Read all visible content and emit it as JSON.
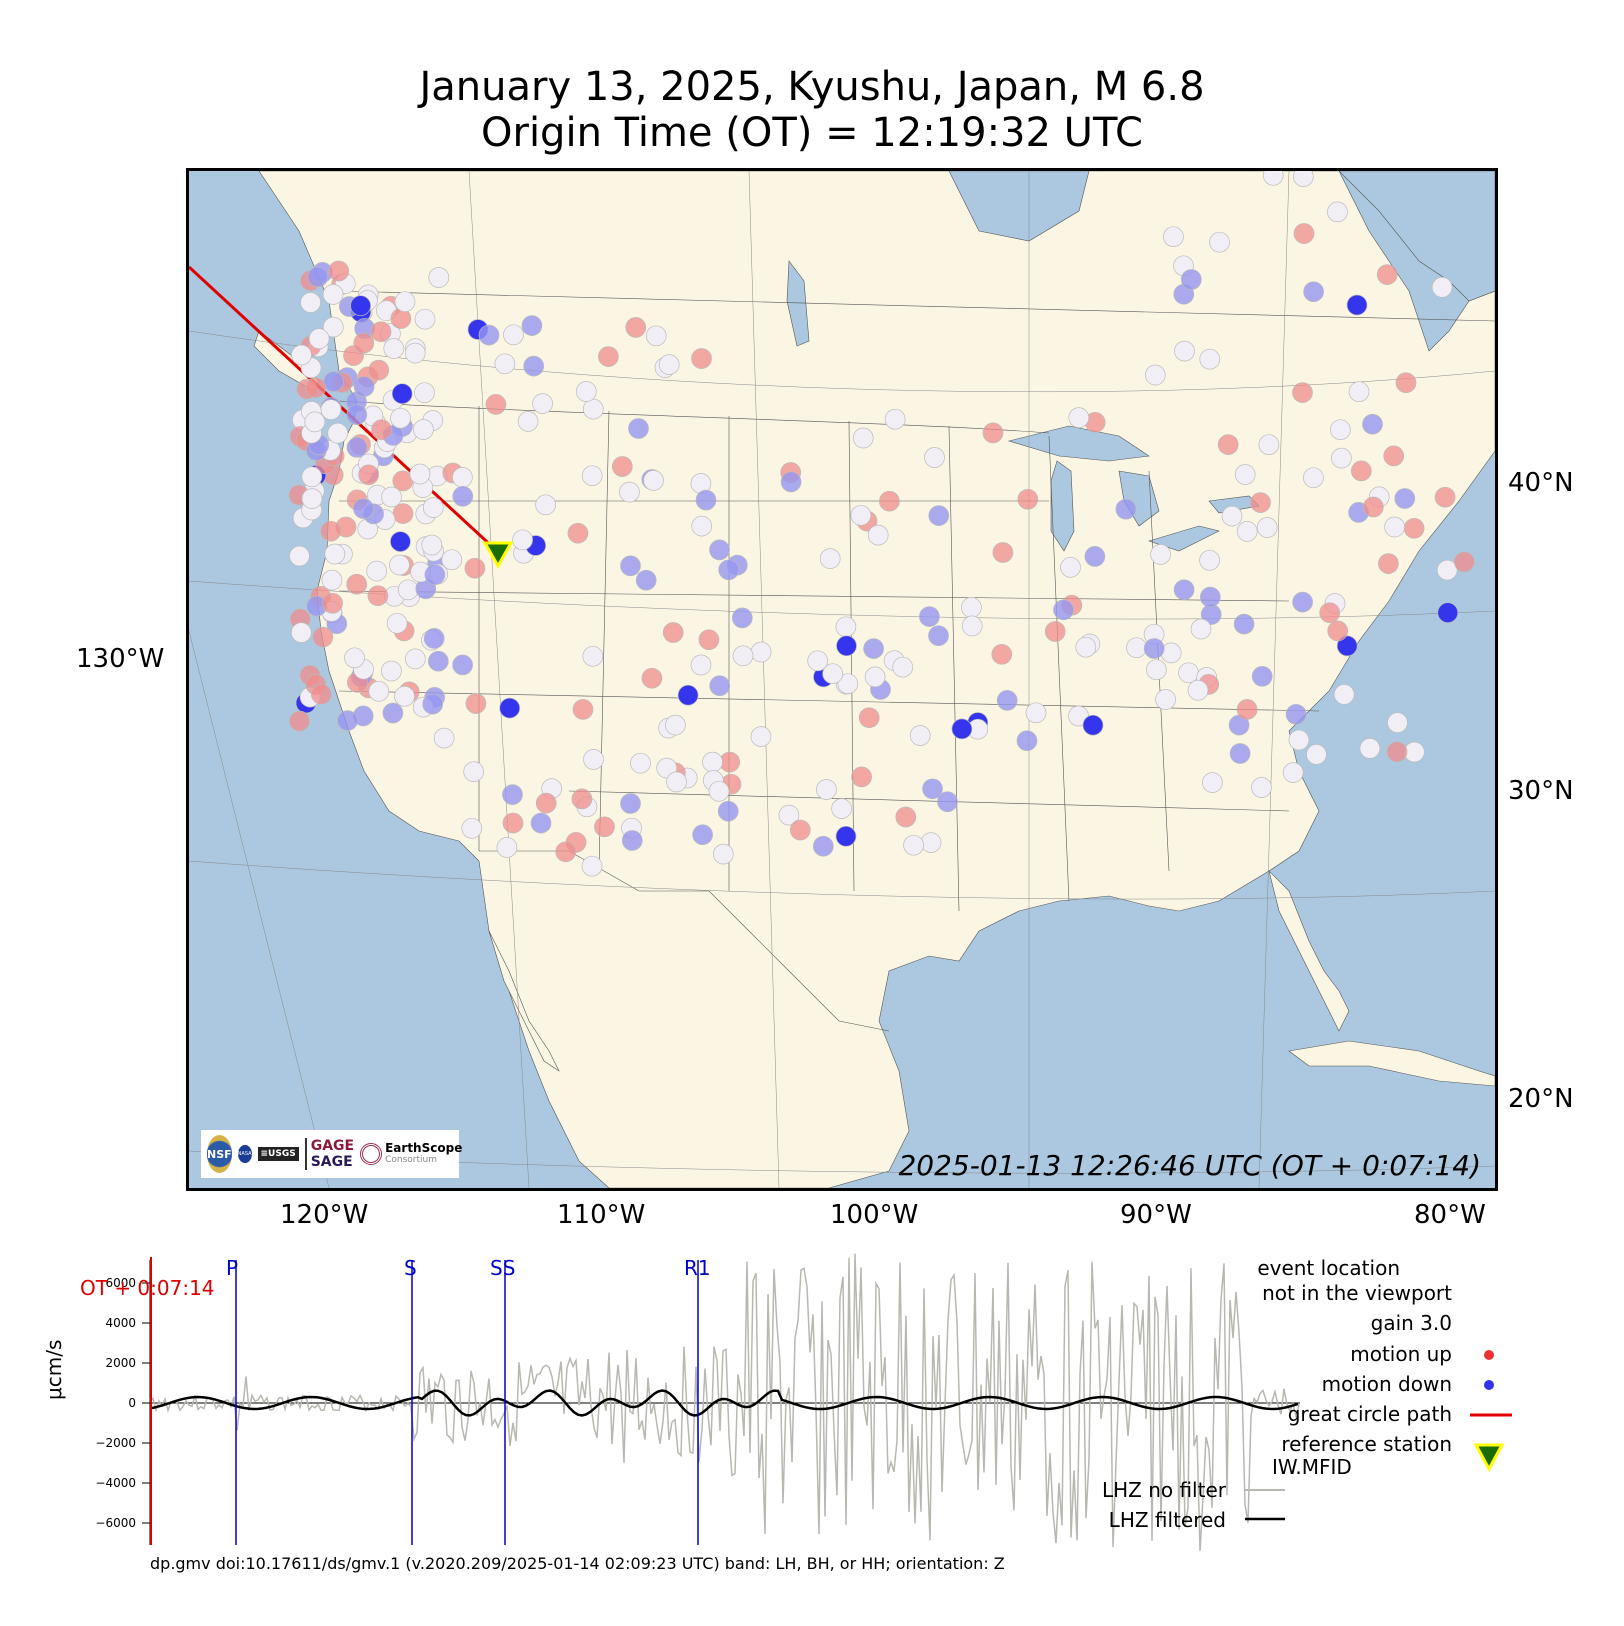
{
  "title": {
    "line1": "January 13, 2025, Kyushu, Japan, M 6.8",
    "line2": "Origin Time (OT) = 12:19:32 UTC"
  },
  "map": {
    "lat_labels": [
      "40°N",
      "30°N",
      "20°N"
    ],
    "lon_labels": [
      "120°W",
      "110°W",
      "100°W",
      "90°W",
      "80°W"
    ],
    "side_lon_label": "130°W",
    "timestamp": "2025-01-13 12:26:46 UTC (OT + 0:07:14)",
    "colors": {
      "ocean": "#abc8e0",
      "land": "#fbf6e4",
      "path": "#e00000",
      "motion_up": "#ee3333",
      "motion_down": "#3333ee",
      "station_fill": "#1a6b00",
      "station_edge": "#ffff00"
    },
    "logos": {
      "gage": "GAGE",
      "sage": "SAGE",
      "earthscope": "EarthScope",
      "consortium": "Consortium",
      "operated_by": "Operated by",
      "nsf": "NSF",
      "nasa": "NASA",
      "usgs": "≡USGS"
    }
  },
  "seismogram": {
    "y_axis_label": "μcm/s",
    "y_ticks": [
      "6000",
      "4000",
      "2000",
      "0",
      "−2000",
      "−4000",
      "−6000"
    ],
    "cursor_label": "OT + 0:07:14",
    "phases": [
      "P",
      "S",
      "SS",
      "R1"
    ],
    "legend": {
      "event_location": "event location",
      "not_in_viewport": "not in the viewport",
      "gain": "gain  3.0",
      "motion_up": "motion up",
      "motion_down": "motion down",
      "great_circle": "great circle path",
      "reference_station": "reference station",
      "station_code": "IW.MFID",
      "no_filter": "LHZ no filter",
      "filtered": "LHZ filtered"
    },
    "colors": {
      "raw": "#b8b8b0",
      "filtered": "#000000",
      "phase": "#0000cc",
      "cursor": "#dd0000"
    }
  },
  "footer": "dp.gmv doi:10.17611/ds/gmv.1 (v.2020.209/2025-01-14 02:09:23 UTC) band: LH, BH, or HH; orientation: Z"
}
